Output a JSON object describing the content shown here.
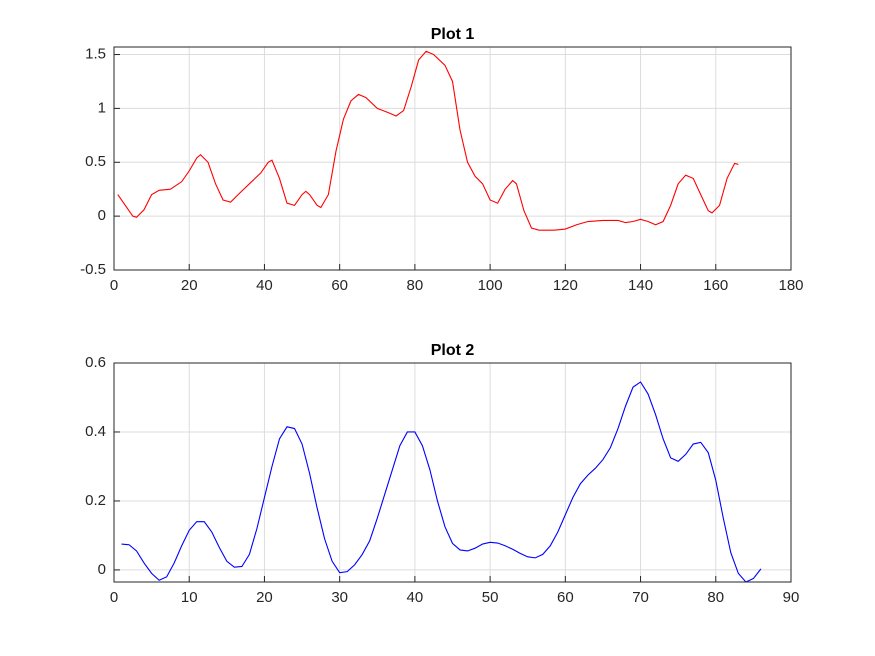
{
  "chart_data": [
    {
      "type": "line",
      "title": "Plot 1",
      "color": "#ff0000",
      "grid": true,
      "x": [
        1,
        3,
        5,
        6,
        8,
        10,
        12,
        15,
        18,
        20,
        22,
        23,
        25,
        27,
        29,
        31,
        33,
        36,
        39,
        41,
        42,
        44,
        46,
        48,
        50,
        51,
        52,
        54,
        55,
        57,
        59,
        61,
        63,
        65,
        67,
        70,
        73,
        75,
        77,
        79,
        81,
        83,
        85,
        88,
        90,
        92,
        94,
        96,
        98,
        100,
        102,
        104,
        106,
        107,
        109,
        111,
        113,
        117,
        120,
        123,
        126,
        130,
        134,
        136,
        138,
        140,
        142,
        144,
        146,
        148,
        150,
        152,
        154,
        156,
        158,
        159,
        161,
        163,
        165,
        166
      ],
      "values": [
        0.2,
        0.1,
        0.0,
        -0.01,
        0.06,
        0.2,
        0.24,
        0.25,
        0.32,
        0.42,
        0.54,
        0.57,
        0.5,
        0.3,
        0.15,
        0.13,
        0.2,
        0.3,
        0.4,
        0.5,
        0.52,
        0.35,
        0.12,
        0.1,
        0.2,
        0.23,
        0.2,
        0.1,
        0.08,
        0.2,
        0.6,
        0.9,
        1.07,
        1.13,
        1.1,
        1.0,
        0.96,
        0.93,
        0.98,
        1.2,
        1.45,
        1.53,
        1.5,
        1.4,
        1.25,
        0.8,
        0.5,
        0.37,
        0.3,
        0.15,
        0.12,
        0.25,
        0.33,
        0.3,
        0.05,
        -0.11,
        -0.13,
        -0.13,
        -0.12,
        -0.08,
        -0.05,
        -0.04,
        -0.04,
        -0.06,
        -0.05,
        -0.03,
        -0.05,
        -0.08,
        -0.05,
        0.1,
        0.3,
        0.38,
        0.35,
        0.2,
        0.05,
        0.03,
        0.1,
        0.35,
        0.49,
        0.48
      ],
      "xlim": [
        0,
        180
      ],
      "ylim": [
        -0.5,
        1.57
      ],
      "xticks": [
        0,
        20,
        40,
        60,
        80,
        100,
        120,
        140,
        160,
        180
      ],
      "yticks": [
        -0.5,
        0,
        0.5,
        1,
        1.5
      ]
    },
    {
      "type": "line",
      "title": "Plot 2",
      "color": "#0000ff",
      "grid": true,
      "x": [
        1,
        2,
        3,
        4,
        5,
        6,
        7,
        8,
        9,
        10,
        11,
        12,
        13,
        14,
        15,
        16,
        17,
        18,
        19,
        20,
        21,
        22,
        23,
        24,
        25,
        26,
        27,
        28,
        29,
        30,
        31,
        32,
        33,
        34,
        35,
        36,
        37,
        38,
        39,
        40,
        41,
        42,
        43,
        44,
        45,
        46,
        47,
        48,
        49,
        50,
        51,
        52,
        53,
        54,
        55,
        56,
        57,
        58,
        59,
        60,
        61,
        62,
        63,
        64,
        65,
        66,
        67,
        68,
        69,
        70,
        71,
        72,
        73,
        74,
        75,
        76,
        77,
        78,
        79,
        80,
        81,
        82,
        83,
        84,
        85,
        86
      ],
      "values": [
        0.075,
        0.073,
        0.055,
        0.02,
        -0.01,
        -0.03,
        -0.02,
        0.02,
        0.07,
        0.115,
        0.14,
        0.14,
        0.11,
        0.065,
        0.025,
        0.008,
        0.01,
        0.045,
        0.12,
        0.21,
        0.3,
        0.38,
        0.415,
        0.41,
        0.365,
        0.28,
        0.18,
        0.09,
        0.025,
        -0.008,
        -0.005,
        0.015,
        0.045,
        0.085,
        0.15,
        0.22,
        0.29,
        0.36,
        0.4,
        0.4,
        0.36,
        0.29,
        0.2,
        0.125,
        0.077,
        0.058,
        0.055,
        0.063,
        0.075,
        0.08,
        0.078,
        0.07,
        0.06,
        0.048,
        0.038,
        0.035,
        0.045,
        0.07,
        0.11,
        0.16,
        0.21,
        0.25,
        0.275,
        0.295,
        0.32,
        0.355,
        0.41,
        0.475,
        0.53,
        0.545,
        0.51,
        0.45,
        0.38,
        0.325,
        0.315,
        0.335,
        0.365,
        0.37,
        0.34,
        0.26,
        0.15,
        0.05,
        -0.01,
        -0.035,
        -0.025,
        0.003
      ],
      "xlim": [
        0,
        90
      ],
      "ylim": [
        -0.035,
        0.6
      ],
      "xticks": [
        0,
        10,
        20,
        30,
        40,
        50,
        60,
        70,
        80,
        90
      ],
      "yticks": [
        0,
        0.2,
        0.4,
        0.6
      ]
    }
  ]
}
